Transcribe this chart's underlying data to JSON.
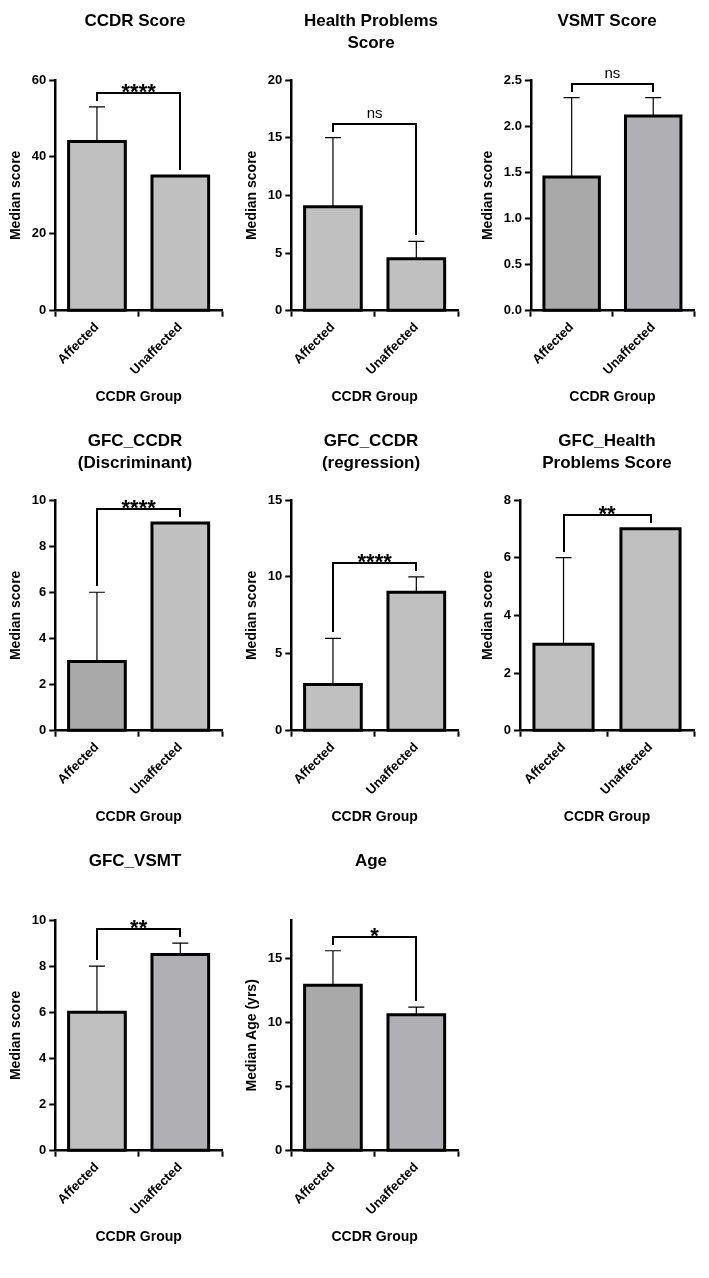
{
  "chart_data": [
    {
      "type": "bar",
      "title": "CCDR Score",
      "xlabel": "CCDR Group",
      "ylabel": "Median score",
      "categories": [
        "Affected",
        "Unaffected"
      ],
      "values": [
        44,
        35
      ],
      "errors": [
        [
          44,
          53
        ],
        null
      ],
      "colors": [
        "#c0c0c0",
        "#c0c0c0"
      ],
      "ylim": [
        0,
        60
      ],
      "yticks": [
        0,
        20,
        40,
        60
      ],
      "grid": false,
      "legend": false,
      "annotations": [
        "****"
      ]
    },
    {
      "type": "bar",
      "title": "Health Problems Score",
      "xlabel": "CCDR Group",
      "ylabel": "Median score",
      "categories": [
        "Affected",
        "Unaffected"
      ],
      "values": [
        9,
        4.5
      ],
      "errors": [
        [
          9,
          15
        ],
        [
          4.5,
          6
        ]
      ],
      "colors": [
        "#c0c0c0",
        "#c0c0c0"
      ],
      "ylim": [
        0,
        20
      ],
      "yticks": [
        0,
        5,
        10,
        15,
        20
      ],
      "grid": false,
      "legend": false,
      "annotations": [
        "ns"
      ]
    },
    {
      "type": "bar",
      "title": "VSMT Score",
      "xlabel": "CCDR Group",
      "ylabel": "Median score",
      "categories": [
        "Affected",
        "Unaffected"
      ],
      "values": [
        1.45,
        2.11
      ],
      "errors": [
        [
          1.45,
          2.31
        ],
        [
          2.11,
          2.31
        ]
      ],
      "colors": [
        "#a9a9a9",
        "#b0b0b4"
      ],
      "ylim": [
        0,
        2.5
      ],
      "yticks": [
        {
          "value": 0,
          "label": "0.0"
        },
        0.5,
        {
          "value": 1,
          "label": "1.0"
        },
        1.5,
        {
          "value": 2,
          "label": "2.0"
        },
        2.5
      ],
      "grid": false,
      "legend": false,
      "annotations": [
        "ns"
      ]
    },
    {
      "type": "bar",
      "title": "GFC_CCDR (Discriminant)",
      "xlabel": "CCDR Group",
      "ylabel": "Median score",
      "categories": [
        "Affected",
        "Unaffected"
      ],
      "values": [
        3,
        9
      ],
      "errors": [
        [
          3,
          6
        ],
        null
      ],
      "colors": [
        "#a9a9a9",
        "#c0c0c0"
      ],
      "ylim": [
        0,
        10
      ],
      "yticks": [
        0,
        2,
        4,
        6,
        8,
        10
      ],
      "grid": false,
      "legend": false,
      "annotations": [
        "****"
      ]
    },
    {
      "type": "bar",
      "title": "GFC_CCDR (regression)",
      "xlabel": "CCDR Group",
      "ylabel": "Median score",
      "categories": [
        "Affected",
        "Unaffected"
      ],
      "values": [
        3,
        9
      ],
      "errors": [
        [
          3,
          6
        ],
        [
          9,
          10
        ]
      ],
      "colors": [
        "#c0c0c0",
        "#c0c0c0"
      ],
      "ylim": [
        0,
        15
      ],
      "yticks": [
        0,
        5,
        10,
        15
      ],
      "grid": false,
      "legend": false,
      "annotations": [
        "****"
      ]
    },
    {
      "type": "bar",
      "title": "GFC_Health Problems Score",
      "xlabel": "CCDR Group",
      "ylabel": "Median score",
      "categories": [
        "Affected",
        "Unaffected"
      ],
      "values": [
        3,
        7
      ],
      "errors": [
        [
          3,
          6
        ],
        null
      ],
      "colors": [
        "#c0c0c0",
        "#c0c0c0"
      ],
      "ylim": [
        0,
        8
      ],
      "yticks": [
        0,
        2,
        4,
        6,
        8
      ],
      "grid": false,
      "legend": false,
      "annotations": [
        "**"
      ]
    },
    {
      "type": "bar",
      "title": "GFC_VSMT",
      "xlabel": "CCDR Group",
      "ylabel": "Median score",
      "categories": [
        "Affected",
        "Unaffected"
      ],
      "values": [
        6,
        8.5
      ],
      "errors": [
        [
          6,
          8
        ],
        [
          8.5,
          9
        ]
      ],
      "colors": [
        "#c0c0c0",
        "#b0b0b4"
      ],
      "ylim": [
        0,
        10
      ],
      "yticks": [
        0,
        2,
        4,
        6,
        8,
        10
      ],
      "grid": false,
      "legend": false,
      "annotations": [
        "**"
      ]
    },
    {
      "type": "bar",
      "title": "Age",
      "xlabel": "CCDR Group",
      "ylabel": "Median Age (yrs)",
      "categories": [
        "Affected",
        "Unaffected"
      ],
      "values": [
        12.9,
        10.6
      ],
      "errors": [
        [
          12.9,
          15.6
        ],
        [
          10.6,
          11.2
        ]
      ],
      "colors": [
        "#a9a9a9",
        "#b0b0b4"
      ],
      "ylim": [
        0,
        18
      ],
      "yticks": [
        0,
        5,
        10,
        15
      ],
      "grid": false,
      "legend": false,
      "annotations": [
        "*"
      ]
    }
  ]
}
